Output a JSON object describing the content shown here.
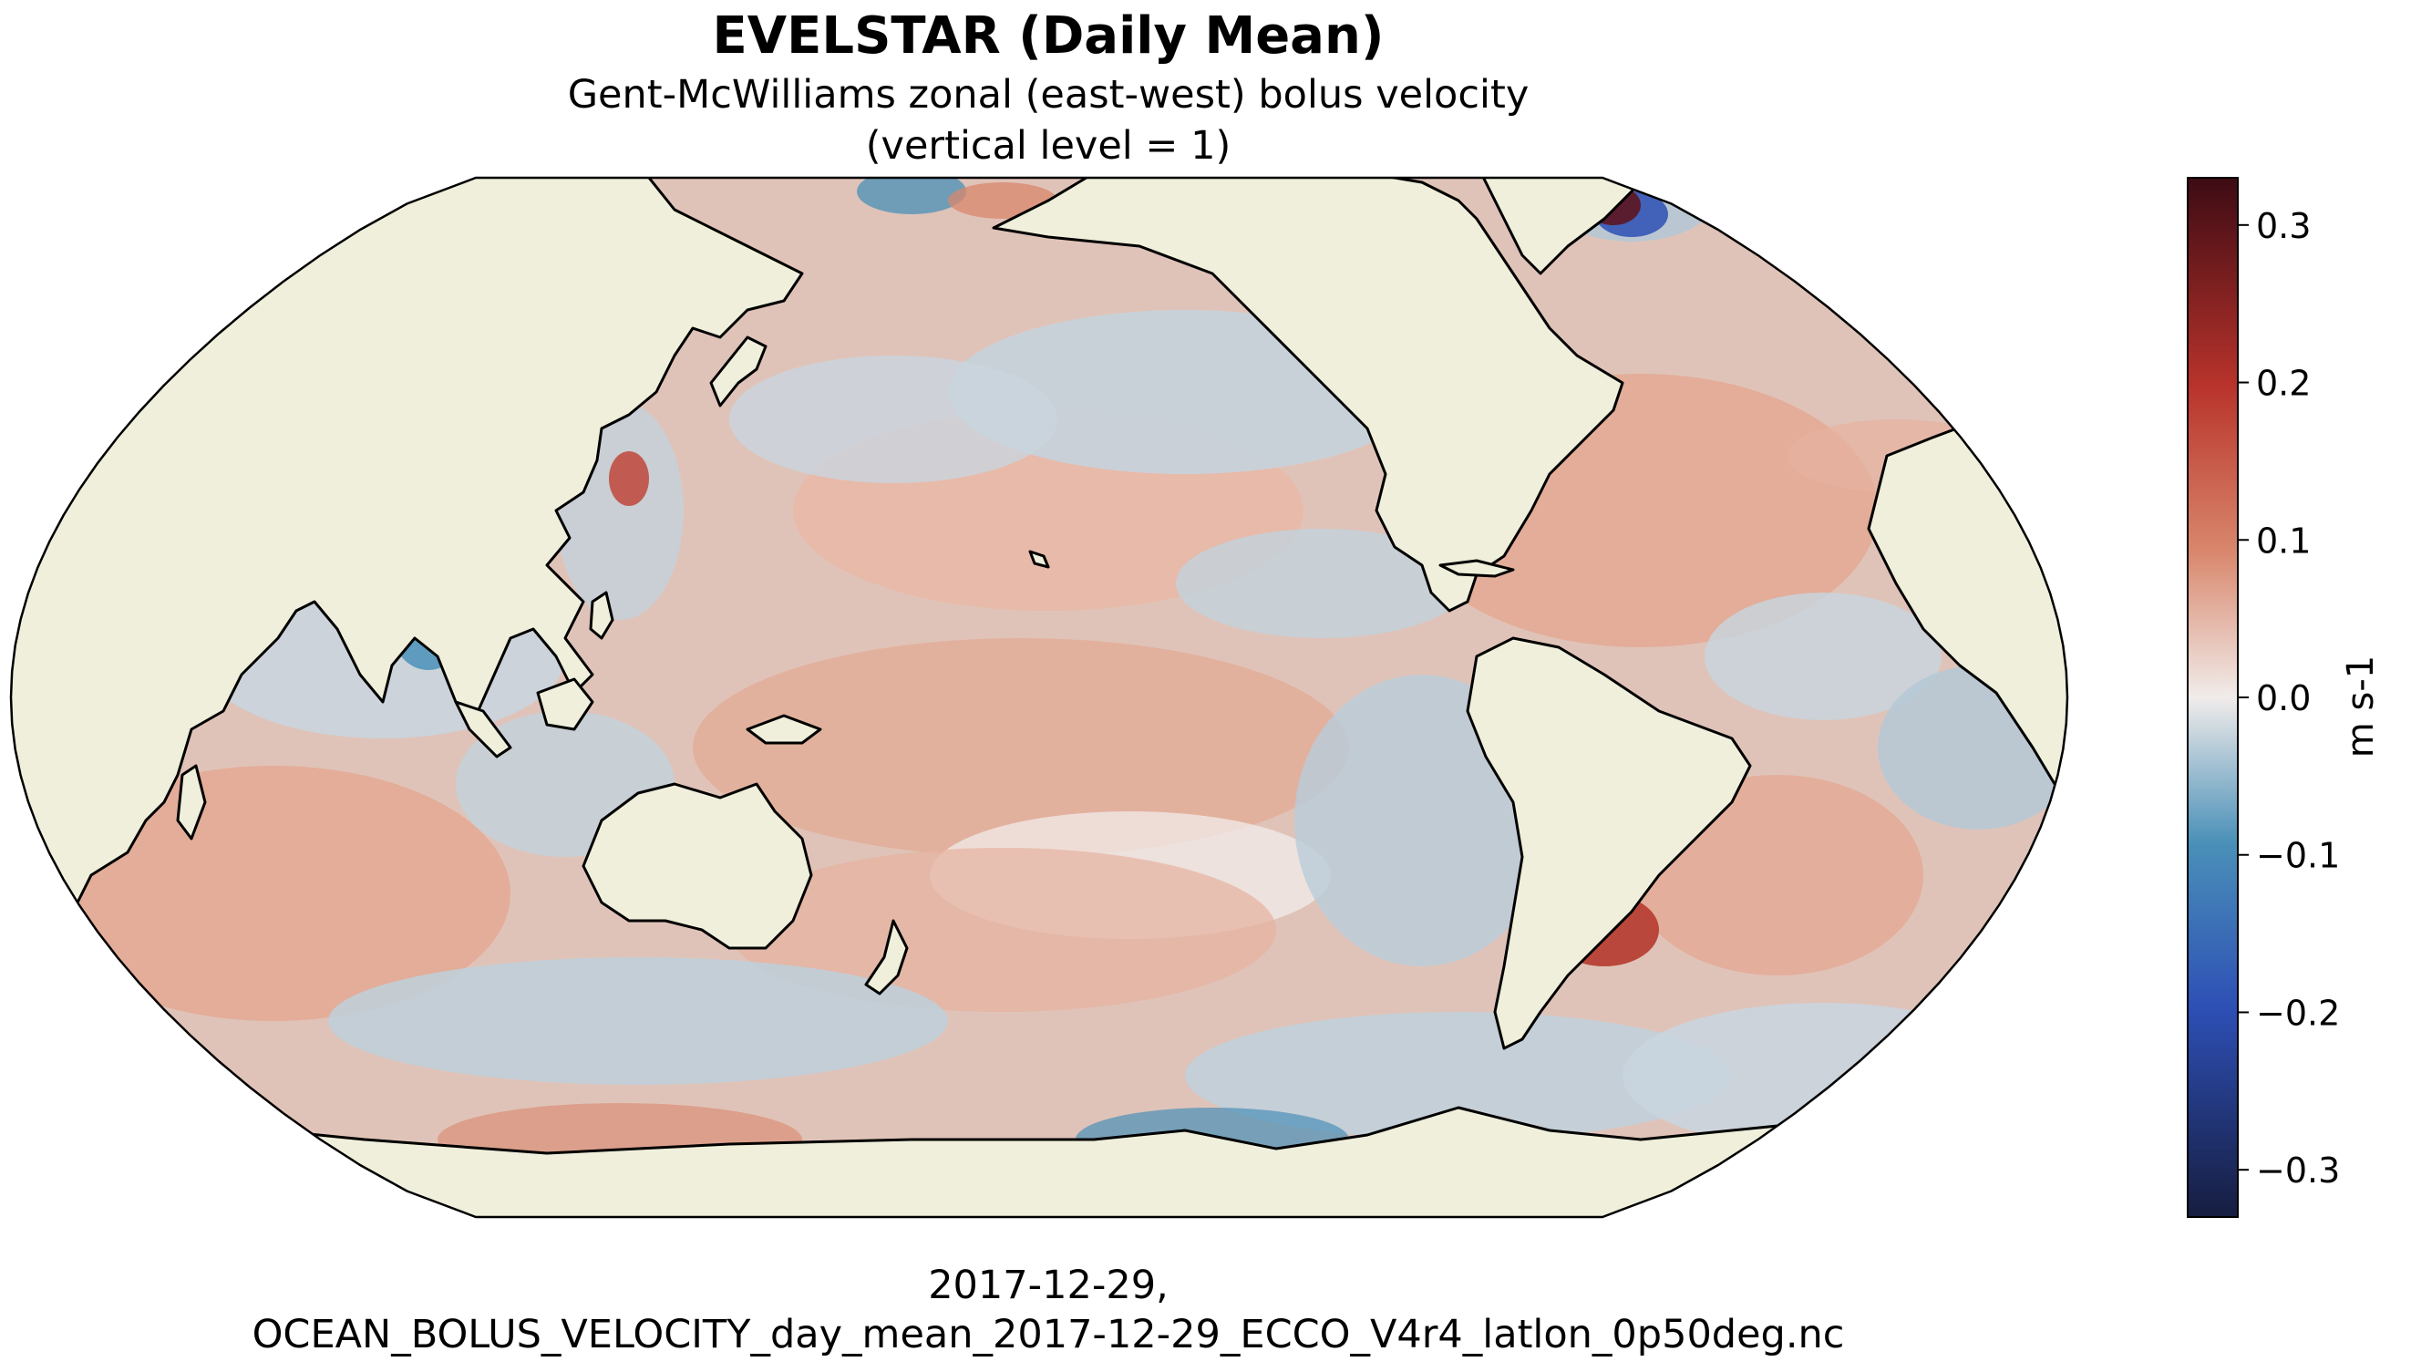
{
  "figure": {
    "title": "EVELSTAR (Daily Mean)",
    "subtitle_line1": "Gent-McWilliams zonal (east-west) bolus velocity",
    "subtitle_line2": "(vertical level = 1)",
    "footer_line1": "2017-12-29,",
    "footer_line2": "OCEAN_BOLUS_VELOCITY_day_mean_2017-12-29_ECCO_V4r4_latlon_0p50deg.nc"
  },
  "map": {
    "projection": "Robinson",
    "central_longitude": "Pacific-centered",
    "land_color": "#efefdb",
    "coastline_color": "#000000",
    "field": "EVELSTAR",
    "date": "2017-12-29"
  },
  "colorbar": {
    "label": "m s-1",
    "cmap": "balance",
    "vmin": -0.33,
    "vmax": 0.33,
    "ticks": [
      {
        "value": 0.3,
        "label": "0.3"
      },
      {
        "value": 0.2,
        "label": "0.2"
      },
      {
        "value": 0.1,
        "label": "0.1"
      },
      {
        "value": 0.0,
        "label": "0.0"
      },
      {
        "value": -0.1,
        "label": "−0.1"
      },
      {
        "value": -0.2,
        "label": "−0.2"
      },
      {
        "value": -0.3,
        "label": "−0.3"
      }
    ],
    "colors": {
      "min": "#161d3f",
      "low": "#2d4fb5",
      "midlow": "#4a90b8",
      "center": "#f1ecea",
      "midhigh": "#d9876d",
      "high": "#b8332b",
      "max": "#3d0b14"
    }
  }
}
